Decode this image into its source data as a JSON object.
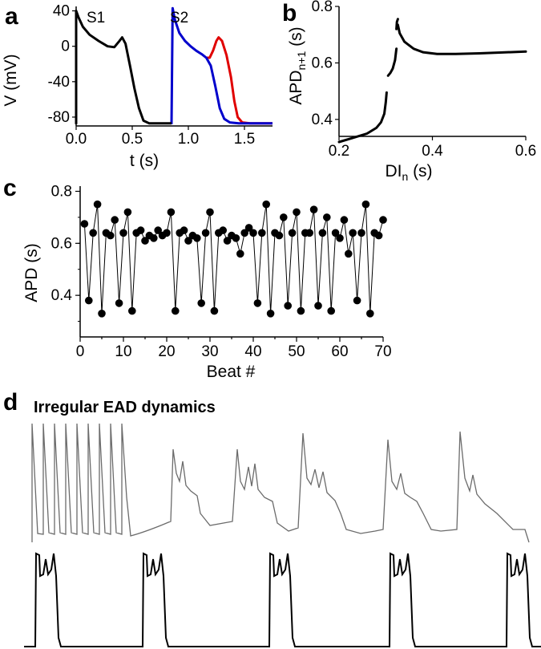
{
  "chart_data": [
    {
      "panel": "a",
      "type": "line",
      "xlabel": "t (s)",
      "ylabel": "V (mV)",
      "xlim": [
        0,
        1.75
      ],
      "ylim": [
        -90,
        45
      ],
      "xticks": [
        "0.0",
        "0.5",
        "1.0",
        "1.5"
      ],
      "yticks": [
        "40",
        "0",
        "-40",
        "-80"
      ],
      "annotations": [
        "S1",
        "S2"
      ],
      "series": [
        {
          "color": "#000000",
          "x": [
            0.0,
            0.0,
            0.02,
            0.06,
            0.12,
            0.2,
            0.28,
            0.34,
            0.38,
            0.41,
            0.44,
            0.48,
            0.52,
            0.56,
            0.6,
            0.65,
            0.72,
            0.85
          ],
          "y": [
            -88,
            40,
            33,
            22,
            13,
            6,
            0,
            -1,
            5,
            10,
            3,
            -22,
            -48,
            -70,
            -84,
            -87,
            -87,
            -87
          ]
        },
        {
          "color": "#0000cc",
          "x": [
            0.85,
            0.86,
            0.88,
            0.92,
            0.97,
            1.02,
            1.07,
            1.12,
            1.16,
            1.2,
            1.24,
            1.28,
            1.32,
            1.37,
            1.45,
            1.75
          ],
          "y": [
            -88,
            43,
            30,
            15,
            6,
            0,
            -5,
            -9,
            -13,
            -22,
            -45,
            -70,
            -82,
            -86,
            -87,
            -87
          ]
        },
        {
          "color": "#e00000",
          "x": [
            1.16,
            1.19,
            1.22,
            1.25,
            1.27,
            1.3,
            1.34,
            1.38,
            1.41,
            1.44,
            1.48,
            1.55,
            1.75
          ],
          "y": [
            -13,
            -13,
            -5,
            6,
            10,
            6,
            -10,
            -35,
            -62,
            -80,
            -86,
            -87,
            -87
          ]
        }
      ]
    },
    {
      "panel": "b",
      "type": "line",
      "xlabel": "DI",
      "xlabel_sub": "n",
      "xlabel_unit": " (s)",
      "ylabel": "APD",
      "ylabel_sub": "n+1",
      "ylabel_unit": " (s)",
      "xlim": [
        0.2,
        0.6
      ],
      "ylim": [
        0.34,
        0.8
      ],
      "xticks": [
        "0.2",
        "0.4",
        "0.6"
      ],
      "yticks": [
        "0.8",
        "0.6",
        "0.4"
      ],
      "segments": [
        {
          "x": [
            0.2,
            0.23,
            0.26,
            0.28,
            0.29,
            0.297,
            0.3,
            0.302
          ],
          "y": [
            0.32,
            0.335,
            0.35,
            0.37,
            0.39,
            0.42,
            0.46,
            0.495
          ]
        },
        {
          "x": [
            0.305,
            0.31,
            0.315,
            0.32,
            0.323
          ],
          "y": [
            0.555,
            0.565,
            0.58,
            0.61,
            0.65
          ]
        },
        {
          "x": [
            0.323,
            0.324,
            0.326
          ],
          "y": [
            0.72,
            0.745,
            0.755
          ]
        },
        {
          "x": [
            0.326,
            0.33,
            0.34,
            0.36,
            0.38,
            0.41,
            0.45,
            0.5,
            0.55,
            0.6
          ],
          "y": [
            0.735,
            0.705,
            0.675,
            0.65,
            0.638,
            0.632,
            0.632,
            0.634,
            0.637,
            0.64
          ]
        }
      ]
    },
    {
      "panel": "c",
      "type": "scatter",
      "xlabel": "Beat #",
      "ylabel": "APD (s)",
      "xlim": [
        0,
        70
      ],
      "ylim": [
        0.24,
        0.82
      ],
      "xticks": [
        "0",
        "10",
        "20",
        "30",
        "40",
        "50",
        "60",
        "70"
      ],
      "yticks": [
        "0.8",
        "0.6",
        "0.4"
      ],
      "x": [
        1,
        2,
        3,
        4,
        5,
        6,
        7,
        8,
        9,
        10,
        11,
        12,
        13,
        14,
        15,
        16,
        17,
        18,
        19,
        20,
        21,
        22,
        23,
        24,
        25,
        26,
        27,
        28,
        29,
        30,
        31,
        32,
        33,
        34,
        35,
        36,
        37,
        38,
        39,
        40,
        41,
        42,
        43,
        44,
        45,
        46,
        47,
        48,
        49,
        50,
        51,
        52,
        53,
        54,
        55,
        56,
        57,
        58,
        59,
        60,
        61,
        62,
        63,
        64,
        65,
        66,
        67,
        68,
        69,
        70
      ],
      "y": [
        0.675,
        0.38,
        0.64,
        0.75,
        0.33,
        0.64,
        0.63,
        0.69,
        0.37,
        0.64,
        0.72,
        0.34,
        0.64,
        0.65,
        0.61,
        0.63,
        0.62,
        0.65,
        0.63,
        0.64,
        0.72,
        0.34,
        0.64,
        0.65,
        0.61,
        0.63,
        0.62,
        0.37,
        0.64,
        0.72,
        0.34,
        0.64,
        0.65,
        0.61,
        0.63,
        0.62,
        0.56,
        0.64,
        0.66,
        0.64,
        0.37,
        0.64,
        0.75,
        0.33,
        0.64,
        0.63,
        0.7,
        0.36,
        0.64,
        0.72,
        0.34,
        0.64,
        0.64,
        0.73,
        0.36,
        0.64,
        0.7,
        0.34,
        0.64,
        0.62,
        0.69,
        0.56,
        0.64,
        0.38,
        0.64,
        0.75,
        0.33,
        0.64,
        0.63,
        0.69
      ]
    },
    {
      "panel": "d",
      "type": "line",
      "title": "Irregular EAD dynamics"
    }
  ],
  "colors": {
    "black": "#000000",
    "blue": "#0000cc",
    "red": "#e00000",
    "trace_gray": "#6b6b6b"
  }
}
